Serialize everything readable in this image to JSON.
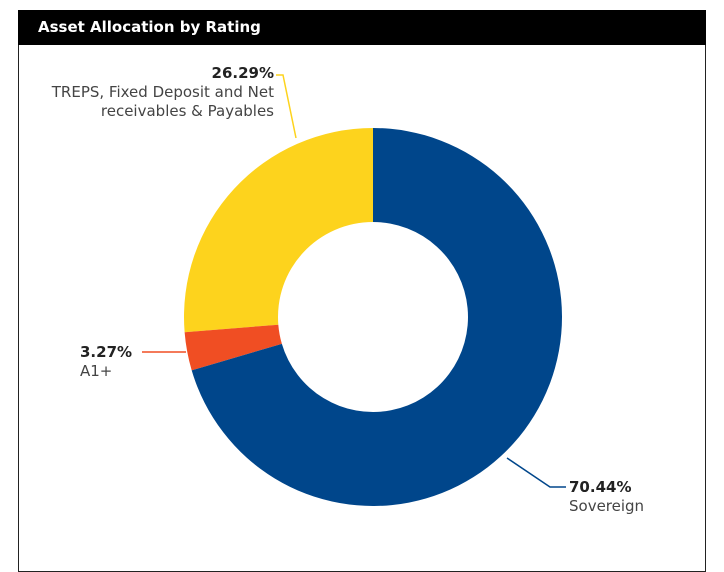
{
  "chart_data": {
    "type": "pie",
    "title": "Asset Allocation by Rating",
    "categories": [
      "Sovereign",
      "A1+",
      "TREPS, Fixed Deposit and Net receivables & Payables"
    ],
    "values": [
      70.44,
      3.27,
      26.29
    ],
    "value_labels": [
      "70.44%",
      "3.27%",
      "26.29%"
    ],
    "colors": [
      "#00468b",
      "#f04e23",
      "#fdd31d"
    ]
  }
}
